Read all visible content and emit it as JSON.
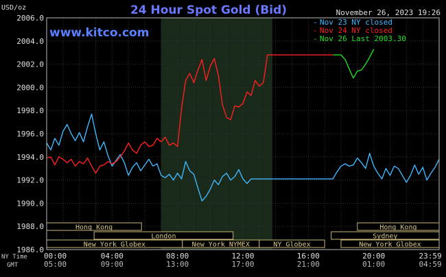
{
  "chart_data": {
    "type": "line",
    "title": "24 Hour Spot Gold (Bid)",
    "site": "www.kitco.com",
    "timestamp": "November 26, 2023 19:26",
    "ylabel": "USD/oz",
    "ylim": [
      1986.0,
      2006.0
    ],
    "y_ticks": [
      "2006.0",
      "2004.0",
      "2002.0",
      "2000.0",
      "1998.0",
      "1996.0",
      "1994.0",
      "1992.0",
      "1990.0",
      "1988.0",
      "1986.0"
    ],
    "x_ticks_ny": [
      "00:00",
      "04:00",
      "08:00",
      "12:00",
      "16:00",
      "20:00",
      "23:59"
    ],
    "x_ticks_gmt": [
      "05:00",
      "09:00",
      "13:00",
      "17:00",
      "21:00",
      "01:00",
      "04:59"
    ],
    "row_labels": {
      "ny": "NY Time",
      "gmt": "GMT"
    },
    "grid": true,
    "highlight_hours": [
      7.0,
      13.8
    ],
    "legend": [
      {
        "label": "Nov 23 NY closed",
        "color": "#3fb8ff"
      },
      {
        "label": "Nov 24 NY closed",
        "color": "#ff2020"
      },
      {
        "label": "Nov 26 Last 2003.30",
        "color": "#20e020"
      }
    ],
    "sessions": {
      "row1": [
        {
          "label": "Hong Kong",
          "start": 0.0,
          "end": 5.8
        },
        {
          "label": "Hong Kong",
          "start": 19.0,
          "end": 24.0
        }
      ],
      "row2": [
        {
          "label": "London",
          "start": 2.9,
          "end": 11.4
        },
        {
          "label": "Sydney",
          "start": 17.4,
          "end": 24.0
        }
      ],
      "row3": [
        {
          "label": "New York Globex",
          "start": 0.0,
          "end": 8.3
        },
        {
          "label": "New York NYMEX",
          "start": 8.3,
          "end": 13.0
        },
        {
          "label": "NY Globex",
          "start": 13.0,
          "end": 17.0
        },
        {
          "label": "New York Globex",
          "start": 18.0,
          "end": 24.0
        }
      ]
    },
    "series": [
      {
        "name": "Nov 23 NY closed",
        "color": "#3fb8ff",
        "x": [
          0.0,
          0.25,
          0.5,
          0.75,
          1.0,
          1.25,
          1.5,
          1.75,
          2.0,
          2.25,
          2.5,
          2.75,
          3.0,
          3.25,
          3.5,
          3.75,
          4.0,
          4.25,
          4.5,
          4.75,
          5.0,
          5.25,
          5.5,
          5.75,
          6.0,
          6.25,
          6.5,
          6.75,
          7.0,
          7.25,
          7.5,
          7.75,
          8.0,
          8.25,
          8.5,
          8.75,
          9.0,
          9.25,
          9.5,
          9.75,
          10.0,
          10.25,
          10.5,
          10.75,
          11.0,
          11.25,
          11.5,
          11.75,
          12.0,
          12.25,
          12.5,
          12.75,
          13.0,
          13.25,
          13.5,
          13.75,
          14.0,
          15.0,
          16.0,
          17.0,
          17.5,
          17.75,
          18.0,
          18.25,
          18.5,
          18.75,
          19.0,
          19.25,
          19.5,
          19.75,
          20.0,
          20.25,
          20.5,
          20.75,
          21.0,
          21.25,
          21.5,
          21.75,
          22.0,
          22.25,
          22.5,
          22.75,
          23.0,
          23.25,
          23.5,
          23.75,
          24.0
        ],
        "y": [
          1995.2,
          1994.6,
          1995.6,
          1995.0,
          1996.2,
          1996.8,
          1996.0,
          1995.4,
          1996.1,
          1995.3,
          1996.6,
          1997.7,
          1996.0,
          1994.6,
          1995.3,
          1994.1,
          1993.2,
          1993.7,
          1994.2,
          1993.5,
          1992.4,
          1993.1,
          1993.5,
          1992.8,
          1993.3,
          1993.8,
          1993.2,
          1993.4,
          1992.4,
          1992.2,
          1992.5,
          1992.0,
          1992.6,
          1992.1,
          1993.6,
          1992.8,
          1992.5,
          1991.3,
          1990.2,
          1990.6,
          1991.2,
          1992.0,
          1991.6,
          1992.3,
          1992.6,
          1992.0,
          1992.3,
          1992.9,
          1992.1,
          1991.7,
          1992.1,
          1992.1,
          1992.1,
          1992.1,
          1992.1,
          1992.1,
          1992.1,
          1992.1,
          1992.1,
          1992.1,
          1992.1,
          1992.7,
          1993.2,
          1993.4,
          1993.2,
          1993.3,
          1993.9,
          1993.5,
          1993.0,
          1994.3,
          1993.2,
          1992.6,
          1992.1,
          1993.0,
          1992.4,
          1993.2,
          1993.0,
          1992.4,
          1991.8,
          1992.4,
          1993.3,
          1992.5,
          1993.1,
          1992.0,
          1992.6,
          1993.1,
          1993.8
        ]
      },
      {
        "name": "Nov 24 NY closed",
        "color": "#ff2020",
        "x": [
          0.0,
          0.25,
          0.5,
          0.75,
          1.0,
          1.25,
          1.5,
          1.75,
          2.0,
          2.25,
          2.5,
          2.75,
          3.0,
          3.25,
          3.5,
          3.75,
          4.0,
          4.25,
          4.5,
          4.75,
          5.0,
          5.25,
          5.5,
          5.75,
          6.0,
          6.25,
          6.5,
          6.75,
          7.0,
          7.25,
          7.5,
          7.75,
          8.0,
          8.25,
          8.5,
          8.75,
          9.0,
          9.25,
          9.5,
          9.75,
          10.0,
          10.25,
          10.5,
          10.75,
          11.0,
          11.25,
          11.5,
          11.75,
          12.0,
          12.25,
          12.5,
          12.75,
          13.0,
          13.25,
          13.5,
          13.75,
          14.0,
          15.0,
          16.0,
          17.0,
          17.5
        ],
        "y": [
          1993.9,
          1994.0,
          1993.3,
          1994.0,
          1993.8,
          1993.5,
          1993.8,
          1993.2,
          1993.6,
          1993.4,
          1993.9,
          1993.2,
          1992.6,
          1993.2,
          1993.3,
          1993.6,
          1993.4,
          1993.6,
          1994.0,
          1994.5,
          1995.2,
          1994.6,
          1994.3,
          1995.0,
          1995.3,
          1994.9,
          1995.0,
          1995.6,
          1995.3,
          1995.7,
          1995.0,
          1995.2,
          1994.9,
          1998.2,
          2000.6,
          2001.2,
          2000.4,
          2001.5,
          2002.4,
          2000.6,
          2001.8,
          2002.5,
          2001.0,
          1998.5,
          1997.4,
          1997.2,
          1998.4,
          1998.3,
          1998.6,
          1999.6,
          1999.3,
          2000.6,
          2000.1,
          2000.4,
          2002.8,
          2002.8,
          2002.8,
          2002.8,
          2002.8,
          2002.8,
          2002.8
        ]
      },
      {
        "name": "Nov 26 Last 2003.30",
        "color": "#20e020",
        "x": [
          17.5,
          18.0,
          18.25,
          18.5,
          18.75,
          19.0,
          19.25,
          19.5,
          19.75,
          20.0
        ],
        "y": [
          2002.8,
          2002.8,
          2002.4,
          2001.6,
          2000.8,
          2001.4,
          2001.5,
          2002.0,
          2002.6,
          2003.3
        ]
      }
    ]
  }
}
